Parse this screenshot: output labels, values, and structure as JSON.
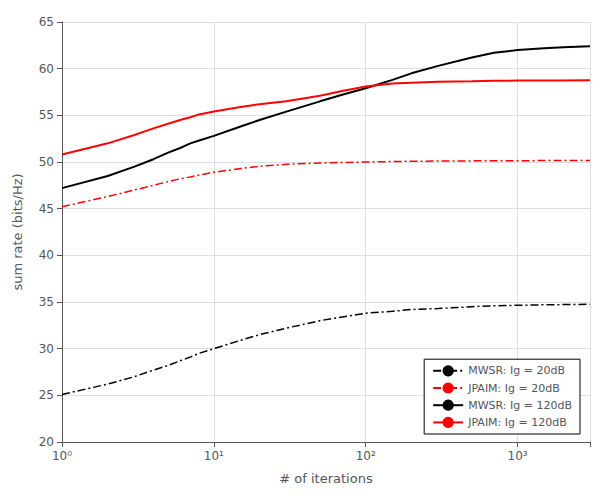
{
  "chart_data": {
    "type": "line",
    "xlabel": "# of iterations",
    "ylabel": "sum rate (bits/Hz)",
    "log": "x",
    "xlim": [
      1,
      3000
    ],
    "xticks": [
      {
        "value": 1,
        "label": "10⁰"
      },
      {
        "value": 10,
        "label": "10¹"
      },
      {
        "value": 100,
        "label": "10²"
      },
      {
        "value": 1000,
        "label": "10³"
      }
    ],
    "ylim": [
      20,
      65
    ],
    "yticks": [
      20,
      25,
      30,
      35,
      40,
      45,
      50,
      55,
      60,
      65
    ],
    "grid": true,
    "legend": "lower right",
    "x": [
      1,
      2,
      3,
      4,
      5,
      6,
      7,
      8,
      10,
      15,
      20,
      30,
      50,
      70,
      100,
      150,
      200,
      300,
      500,
      700,
      1000,
      1500,
      2000,
      3000
    ],
    "series": [
      {
        "name": "MWSR: Ig = 20dB",
        "color": "#000000",
        "line_style": "dashdot",
        "values": [
          25.1,
          26.2,
          27.0,
          27.7,
          28.2,
          28.7,
          29.1,
          29.5,
          30.0,
          30.9,
          31.5,
          32.2,
          33.0,
          33.4,
          33.8,
          34.0,
          34.2,
          34.3,
          34.5,
          34.6,
          34.65,
          34.7,
          34.72,
          34.75
        ]
      },
      {
        "name": "JPAIM: Ig = 20dB",
        "color": "#ff0000",
        "line_style": "dashdot",
        "values": [
          45.2,
          46.3,
          47.0,
          47.5,
          47.9,
          48.2,
          48.4,
          48.6,
          48.9,
          49.3,
          49.55,
          49.75,
          49.9,
          49.95,
          50.0,
          50.05,
          50.08,
          50.1,
          50.12,
          50.13,
          50.14,
          50.15,
          50.15,
          50.15
        ]
      },
      {
        "name": "MWSR: Ig = 120dB",
        "color": "#000000",
        "line_style": "solid",
        "values": [
          47.2,
          48.5,
          49.5,
          50.3,
          51.0,
          51.5,
          52.0,
          52.3,
          52.8,
          53.8,
          54.5,
          55.4,
          56.5,
          57.2,
          57.9,
          58.8,
          59.5,
          60.3,
          61.2,
          61.7,
          62.0,
          62.2,
          62.3,
          62.4
        ]
      },
      {
        "name": "JPAIM: Ig = 120dB",
        "color": "#ff0000",
        "line_style": "solid",
        "values": [
          50.8,
          52.0,
          52.9,
          53.6,
          54.1,
          54.5,
          54.8,
          55.1,
          55.4,
          55.9,
          56.2,
          56.5,
          57.1,
          57.6,
          58.1,
          58.4,
          58.5,
          58.6,
          58.65,
          58.7,
          58.72,
          58.73,
          58.74,
          58.75
        ]
      }
    ]
  }
}
